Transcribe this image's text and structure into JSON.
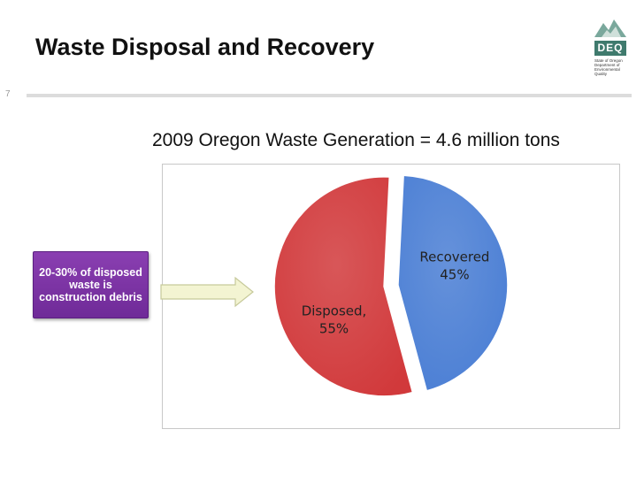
{
  "slide": {
    "title": "Waste Disposal and Recovery",
    "number": "7"
  },
  "logo": {
    "word": "DEQ",
    "lines": [
      "State of Oregon",
      "Department of",
      "Environmental",
      "Quality"
    ]
  },
  "callout": {
    "text": "20-30% of disposed waste is construction debris",
    "color": "#7b33a6"
  },
  "chart_data": {
    "type": "pie",
    "title": "2009 Oregon Waste Generation = 4.6 million tons",
    "slices": [
      {
        "label": "Recovered",
        "value": 45,
        "value_label": "45%",
        "color": "#4a7ed4"
      },
      {
        "label": "Disposed,",
        "value": 55,
        "value_label": "55%",
        "color": "#d1393b"
      }
    ],
    "exploded": true,
    "legend": "none"
  }
}
